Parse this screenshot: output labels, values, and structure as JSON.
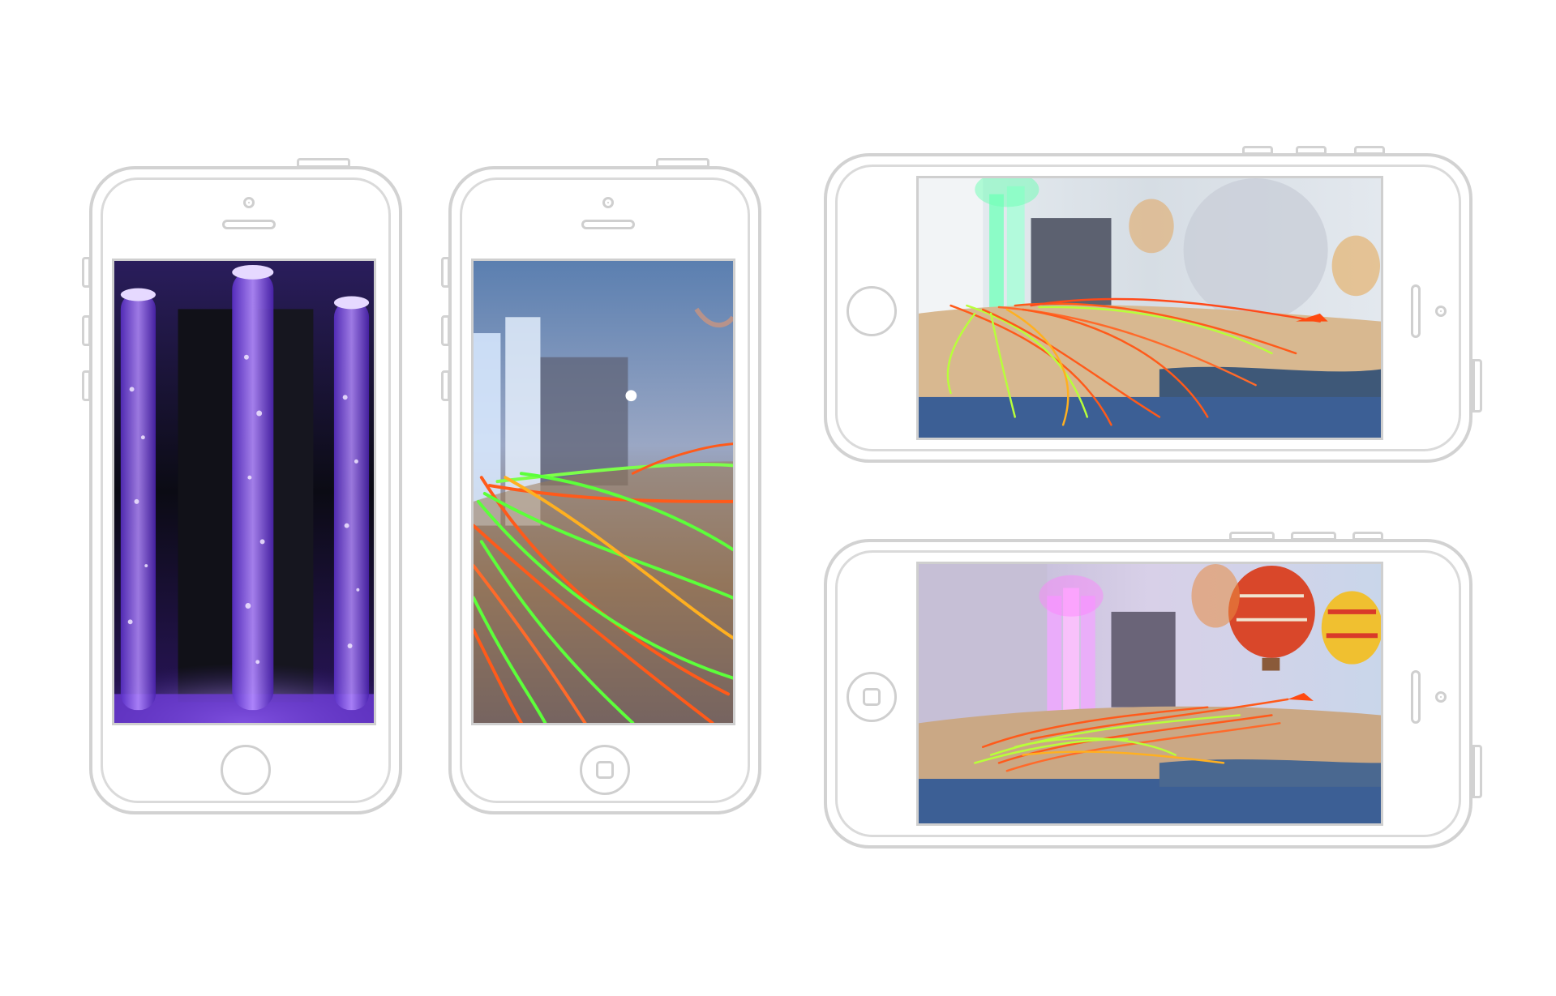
{
  "phones": [
    {
      "id": "portrait-1",
      "orientation": "portrait",
      "home_button_style": "circle",
      "screen_content": "purple-bubble-tubes"
    },
    {
      "id": "portrait-2",
      "orientation": "portrait",
      "home_button_style": "square",
      "screen_content": "fiber-optic-closeup"
    },
    {
      "id": "landscape-1",
      "orientation": "landscape",
      "home_button_style": "circle",
      "screen_content": "green-tube-fiber-bed"
    },
    {
      "id": "landscape-2",
      "orientation": "landscape",
      "home_button_style": "square",
      "screen_content": "pink-tube-balloon-room"
    }
  ],
  "colors": {
    "outline": "#d2d2d2",
    "background": "#ffffff",
    "purple_glow": "#8a4dff",
    "fiber_green": "#5cff3a",
    "fiber_orange": "#ff5a1a"
  }
}
